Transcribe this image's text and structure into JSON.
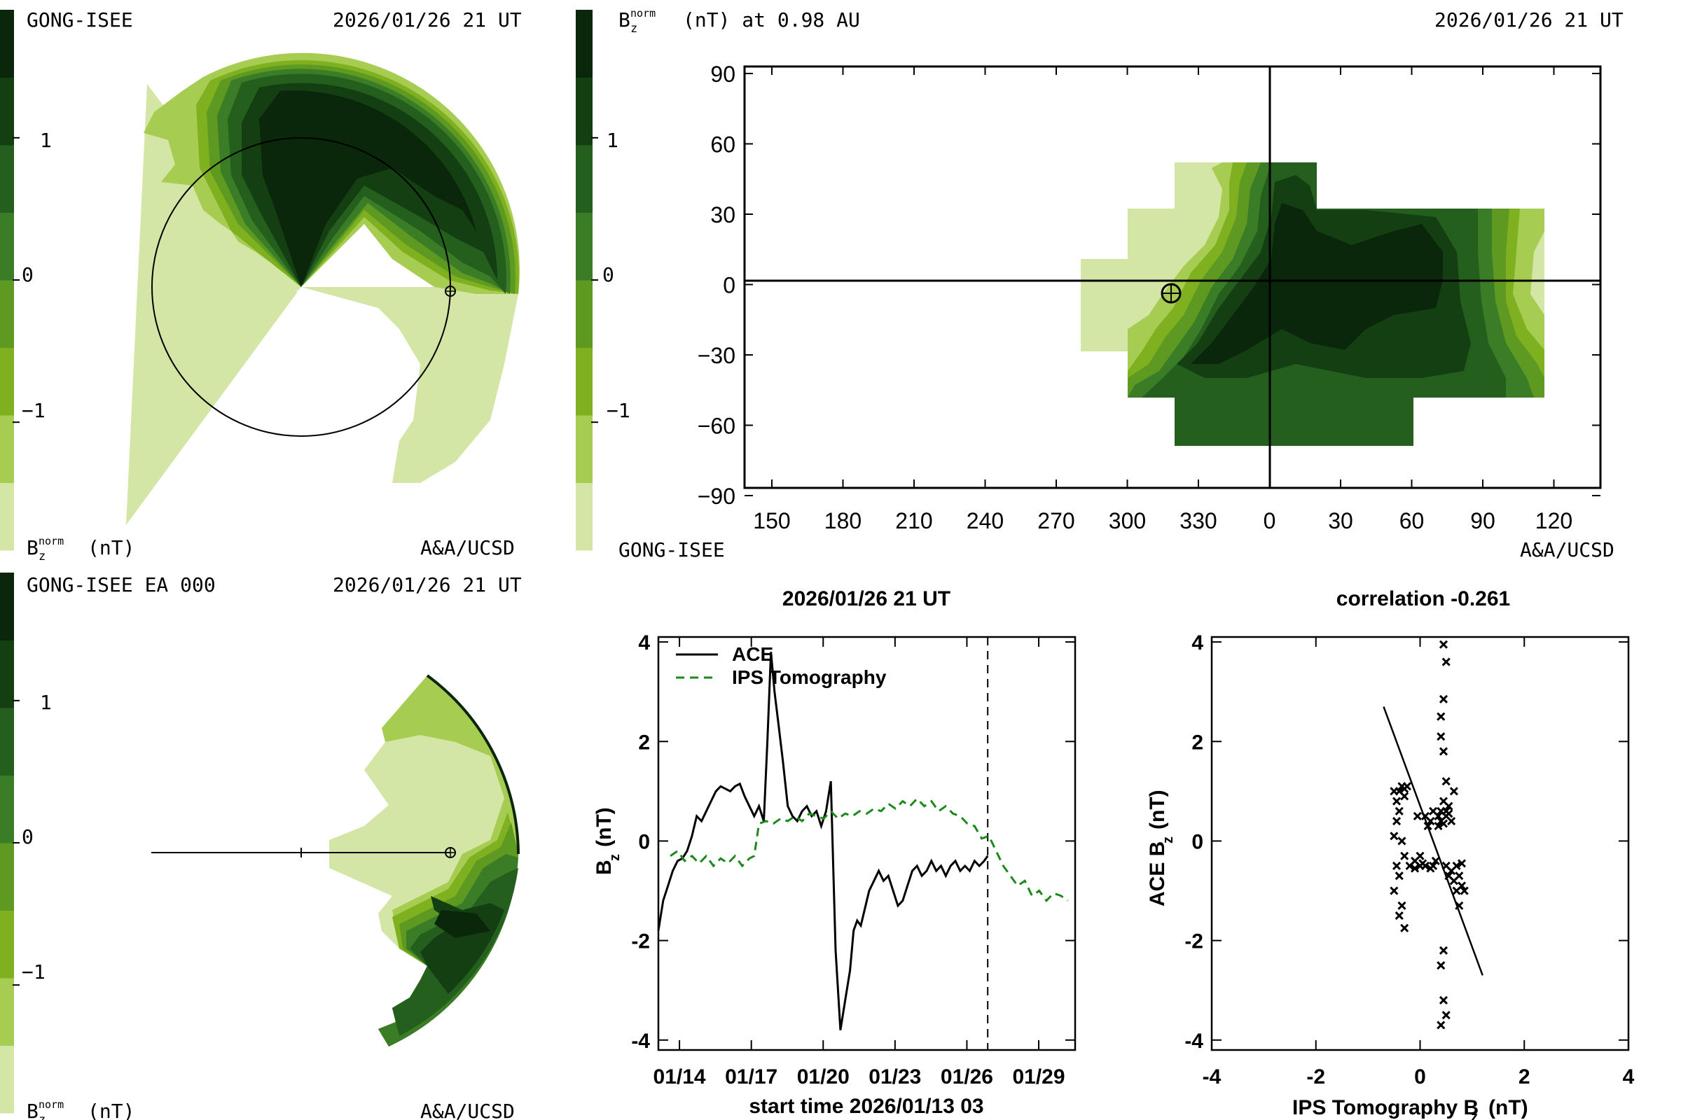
{
  "colors": {
    "levels": [
      "#d3e6a6",
      "#a7cc52",
      "#7fb020",
      "#5e9a22",
      "#3b7d26",
      "#245f1e",
      "#133f12",
      "#0a260b"
    ],
    "line": "#000000",
    "ips_series": "#1a8a1a"
  },
  "panel_tl": {
    "header_left": "GONG-ISEE",
    "header_right": "2026/01/26 21 UT",
    "footer_right": "A&A/UCSD",
    "colorbar_ticks": [
      "1",
      "0",
      "−1"
    ],
    "colorbar_label_main": "B",
    "colorbar_label_sub": "z",
    "colorbar_label_sup": "norm",
    "colorbar_label_unit": "(nT)"
  },
  "panel_bl": {
    "header_left": "GONG-ISEE EA 000",
    "header_right": "2026/01/26 21 UT",
    "footer_right": "A&A/UCSD",
    "colorbar_ticks": [
      "1",
      "0",
      "−1"
    ],
    "colorbar_label_main": "B",
    "colorbar_label_sub": "z",
    "colorbar_label_sup": "norm",
    "colorbar_label_unit": "(nT)"
  },
  "panel_tr": {
    "header_left_main": "B",
    "header_left_sub": "z",
    "header_left_sup": "norm",
    "header_left_rest": "(nT) at 0.98 AU",
    "header_right": "2026/01/26 21 UT",
    "footer_left": "GONG-ISEE",
    "footer_right": "A&A/UCSD",
    "colorbar_ticks": [
      "1",
      "0",
      "−1"
    ],
    "x_ticks": [
      "150",
      "180",
      "210",
      "240",
      "270",
      "300",
      "330",
      "0",
      "30",
      "60",
      "90",
      "120"
    ],
    "y_ticks": [
      "90",
      "60",
      "30",
      "0",
      "−30",
      "−60",
      "−90"
    ]
  },
  "chart_data": [
    {
      "type": "line",
      "title": "2026/01/26 21 UT",
      "xlabel": "start time 2026/01/13 03",
      "ylabel_main": "B",
      "ylabel_sub": "z",
      "ylabel_unit": "(nT)",
      "ylim": [
        -4.2,
        4.1
      ],
      "xlim": [
        0,
        17.4
      ],
      "x_units": "days since start",
      "x_tick_labels": [
        "01/14",
        "01/17",
        "01/20",
        "01/23",
        "01/26",
        "01/29"
      ],
      "x_tick_positions": [
        0.88,
        3.88,
        6.88,
        9.88,
        12.88,
        15.88
      ],
      "y_tick_labels": [
        "4",
        "2",
        "0",
        "-2",
        "-4"
      ],
      "y_ticks": [
        4,
        2,
        0,
        -2,
        -4
      ],
      "now_marker_x": 13.75,
      "series": [
        {
          "name": "ACE",
          "style": "solid",
          "x": [
            0.0,
            0.2,
            0.4,
            0.6,
            0.8,
            1.0,
            1.2,
            1.4,
            1.6,
            1.8,
            2.0,
            2.2,
            2.4,
            2.6,
            2.8,
            3.0,
            3.2,
            3.4,
            3.6,
            3.8,
            4.0,
            4.2,
            4.4,
            4.55,
            4.7,
            4.85,
            5.0,
            5.2,
            5.4,
            5.6,
            5.8,
            6.0,
            6.2,
            6.4,
            6.6,
            6.8,
            7.0,
            7.2,
            7.4,
            7.6,
            7.8,
            8.0,
            8.15,
            8.3,
            8.45,
            8.6,
            8.8,
            9.0,
            9.2,
            9.4,
            9.6,
            9.8,
            10.0,
            10.2,
            10.4,
            10.6,
            10.8,
            11.0,
            11.2,
            11.4,
            11.6,
            11.8,
            12.0,
            12.2,
            12.4,
            12.6,
            12.8,
            13.0,
            13.2,
            13.4,
            13.6,
            13.75
          ],
          "y": [
            -1.8,
            -1.2,
            -0.9,
            -0.6,
            -0.4,
            -0.35,
            -0.2,
            0.1,
            0.5,
            0.4,
            0.6,
            0.8,
            1.0,
            1.1,
            1.05,
            1.0,
            1.1,
            1.15,
            0.9,
            0.7,
            0.5,
            0.7,
            0.4,
            2.0,
            3.8,
            3.0,
            2.4,
            1.6,
            0.7,
            0.5,
            0.4,
            0.6,
            0.7,
            0.5,
            0.6,
            0.3,
            0.6,
            1.2,
            -2.2,
            -3.8,
            -3.2,
            -2.6,
            -1.8,
            -1.6,
            -1.7,
            -1.4,
            -1.0,
            -0.8,
            -0.6,
            -0.8,
            -0.7,
            -1.0,
            -1.3,
            -1.2,
            -0.9,
            -0.6,
            -0.5,
            -0.7,
            -0.6,
            -0.4,
            -0.6,
            -0.5,
            -0.7,
            -0.5,
            -0.4,
            -0.6,
            -0.5,
            -0.6,
            -0.4,
            -0.5,
            -0.4,
            -0.3
          ]
        },
        {
          "name": "IPS Tomography",
          "style": "dashed",
          "x": [
            0.5,
            0.8,
            1.1,
            1.4,
            1.7,
            2.0,
            2.3,
            2.6,
            2.9,
            3.2,
            3.5,
            3.8,
            4.0,
            4.2,
            4.5,
            4.8,
            5.1,
            5.4,
            5.7,
            6.0,
            6.3,
            6.6,
            6.9,
            7.2,
            7.5,
            7.8,
            8.1,
            8.4,
            8.7,
            9.0,
            9.3,
            9.6,
            9.9,
            10.2,
            10.5,
            10.8,
            11.1,
            11.4,
            11.7,
            12.0,
            12.3,
            12.6,
            12.9,
            13.2,
            13.5,
            13.8,
            14.1,
            14.4,
            14.7,
            15.0,
            15.3,
            15.6,
            15.9,
            16.2,
            16.5,
            16.8,
            17.1
          ],
          "y": [
            -0.3,
            -0.2,
            -0.4,
            -0.3,
            -0.45,
            -0.3,
            -0.5,
            -0.35,
            -0.45,
            -0.3,
            -0.5,
            -0.35,
            -0.3,
            0.35,
            0.4,
            0.35,
            0.45,
            0.4,
            0.5,
            0.4,
            0.55,
            0.5,
            0.45,
            0.6,
            0.45,
            0.55,
            0.5,
            0.6,
            0.55,
            0.65,
            0.6,
            0.75,
            0.65,
            0.8,
            0.7,
            0.85,
            0.7,
            0.8,
            0.6,
            0.7,
            0.55,
            0.5,
            0.35,
            0.3,
            0.05,
            0.1,
            -0.2,
            -0.5,
            -0.7,
            -0.9,
            -0.8,
            -1.1,
            -1.0,
            -1.2,
            -1.05,
            -1.1,
            -1.2
          ]
        }
      ]
    },
    {
      "type": "scatter",
      "title": "correlation -0.261",
      "xlabel_main": "IPS Tomography B",
      "xlabel_sub": "z",
      "xlabel_unit": "(nT)",
      "ylabel_main": "ACE B",
      "ylabel_sub": "z",
      "ylabel_unit": "(nT)",
      "xlim": [
        -4,
        4
      ],
      "ylim": [
        -4.2,
        4.1
      ],
      "x_ticks": [
        -4,
        -2,
        0,
        2,
        4
      ],
      "y_ticks": [
        4,
        2,
        0,
        -2,
        -4
      ],
      "fit_line": {
        "x": [
          -0.7,
          1.2
        ],
        "y": [
          2.7,
          -2.7
        ]
      },
      "points": [
        [
          -0.4,
          1.0
        ],
        [
          -0.35,
          1.1
        ],
        [
          -0.3,
          0.9
        ],
        [
          -0.45,
          0.8
        ],
        [
          -0.4,
          0.6
        ],
        [
          -0.5,
          1.0
        ],
        [
          -0.3,
          1.05
        ],
        [
          -0.25,
          1.1
        ],
        [
          -0.45,
          0.4
        ],
        [
          -0.5,
          0.1
        ],
        [
          -0.35,
          0.0
        ],
        [
          -0.3,
          -0.3
        ],
        [
          -0.45,
          -0.5
        ],
        [
          -0.4,
          -0.7
        ],
        [
          -0.5,
          -1.0
        ],
        [
          -0.35,
          -1.3
        ],
        [
          -0.4,
          -1.5
        ],
        [
          -0.3,
          -1.75
        ],
        [
          -0.2,
          -0.5
        ],
        [
          -0.1,
          -0.55
        ],
        [
          0.0,
          -0.5
        ],
        [
          0.05,
          -0.45
        ],
        [
          0.1,
          -0.5
        ],
        [
          0.2,
          -0.55
        ],
        [
          0.25,
          -0.5
        ],
        [
          0.3,
          -0.4
        ],
        [
          0.35,
          0.3
        ],
        [
          0.35,
          0.5
        ],
        [
          0.4,
          0.6
        ],
        [
          0.45,
          0.8
        ],
        [
          0.5,
          0.6
        ],
        [
          0.55,
          0.55
        ],
        [
          0.4,
          0.4
        ],
        [
          0.45,
          0.35
        ],
        [
          0.5,
          0.5
        ],
        [
          0.6,
          0.4
        ],
        [
          0.55,
          0.7
        ],
        [
          0.65,
          1.0
        ],
        [
          0.5,
          1.2
        ],
        [
          0.45,
          1.8
        ],
        [
          0.4,
          2.1
        ],
        [
          0.4,
          2.5
        ],
        [
          0.45,
          2.85
        ],
        [
          0.5,
          3.6
        ],
        [
          0.45,
          3.95
        ],
        [
          0.6,
          -0.6
        ],
        [
          0.65,
          -0.8
        ],
        [
          0.7,
          -1.0
        ],
        [
          0.75,
          -1.3
        ],
        [
          0.8,
          -0.9
        ],
        [
          0.7,
          -0.5
        ],
        [
          0.8,
          -0.45
        ],
        [
          0.75,
          -0.7
        ],
        [
          0.85,
          -1.0
        ],
        [
          0.55,
          -0.7
        ],
        [
          0.5,
          -0.5
        ],
        [
          0.45,
          -2.2
        ],
        [
          0.4,
          -2.5
        ],
        [
          0.45,
          -3.2
        ],
        [
          0.5,
          -3.5
        ],
        [
          0.4,
          -3.7
        ],
        [
          0.1,
          0.5
        ],
        [
          0.2,
          0.4
        ],
        [
          0.25,
          0.6
        ],
        [
          -0.05,
          0.5
        ],
        [
          0.15,
          0.3
        ],
        [
          0.0,
          -0.3
        ],
        [
          -0.1,
          -0.4
        ]
      ]
    }
  ],
  "legend": {
    "ace": "ACE",
    "ips": "IPS Tomography"
  }
}
